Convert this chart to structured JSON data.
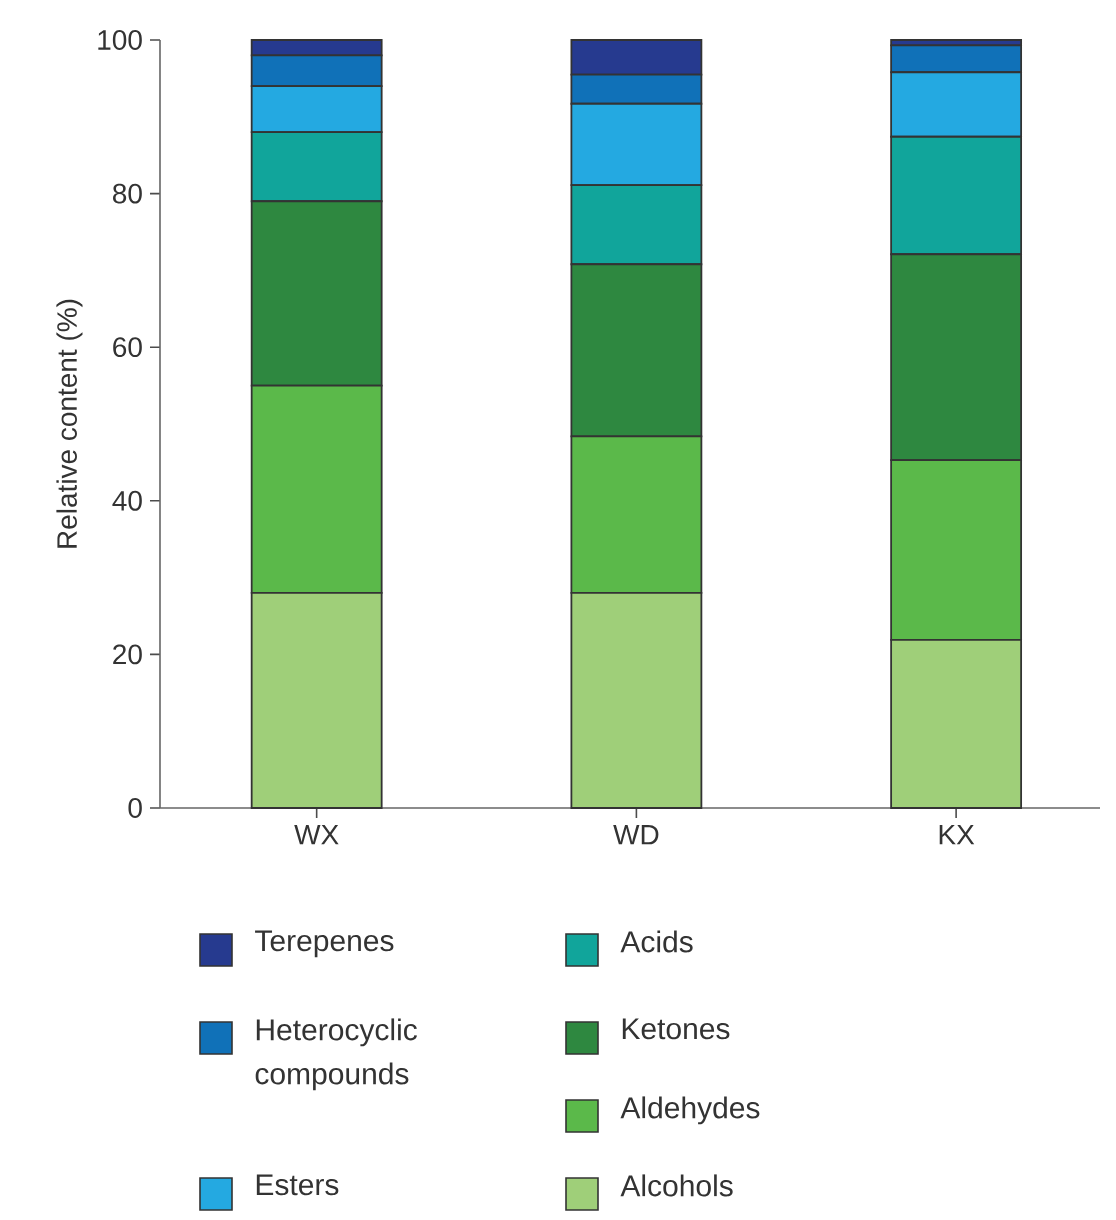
{
  "chart_data": {
    "type": "bar",
    "stacked": true,
    "ylabel": "Relative content (%)",
    "categories": [
      "WX",
      "WD",
      "KX"
    ],
    "ylim": [
      0,
      100
    ],
    "yticks": [
      0,
      20,
      40,
      60,
      80,
      100
    ],
    "legend": "bottom",
    "grid": false,
    "series": [
      {
        "name": "Alcohols",
        "color": "#9fcf79",
        "values": [
          28,
          28,
          21.9
        ]
      },
      {
        "name": "Aldehydes",
        "color": "#5bb94a",
        "values": [
          27,
          20.4,
          23.4
        ]
      },
      {
        "name": "Ketones",
        "color": "#2e8840",
        "values": [
          24,
          22.4,
          26.8
        ]
      },
      {
        "name": "Acids",
        "color": "#11a59b",
        "values": [
          9,
          10.3,
          15.3
        ]
      },
      {
        "name": "Esters",
        "color": "#24a9e1",
        "values": [
          6,
          10.6,
          8.4
        ]
      },
      {
        "name": "Heterocyclic compounds",
        "color": "#1071b8",
        "values": [
          4,
          3.8,
          3.5
        ]
      },
      {
        "name": "Terepenes",
        "color": "#263a8f",
        "values": [
          2,
          4.5,
          0.7
        ]
      }
    ]
  }
}
